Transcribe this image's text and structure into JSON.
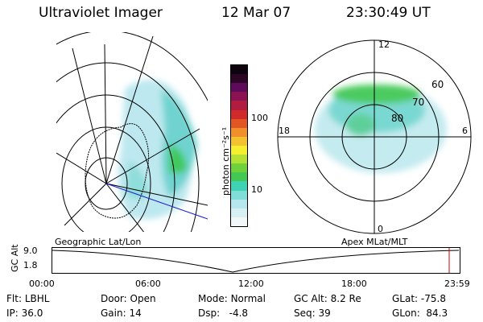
{
  "header": {
    "title": "Ultraviolet Imager",
    "date": "12 Mar 07",
    "time": "23:30:49 UT"
  },
  "colorbar": {
    "unit_label": "photon cm⁻²s⁻¹",
    "ticks": [
      "100",
      "10"
    ],
    "scale": "log",
    "colors": [
      "#f2f7f7",
      "#d8f0f4",
      "#b4e8ee",
      "#7fded8",
      "#3fd2b4",
      "#42c853",
      "#6fd23a",
      "#b4e234",
      "#f5ef30",
      "#f4c22e",
      "#f0902a",
      "#e25626",
      "#d02a2a",
      "#b01d40",
      "#8b1353",
      "#5d0b5a",
      "#2c0624",
      "#0e0410"
    ]
  },
  "left_map": {
    "caption": "Geographic Lat/Lon"
  },
  "right_map": {
    "caption": "Apex MLat/MLT",
    "lat_labels": [
      "80",
      "70",
      "60"
    ],
    "mlt_labels": [
      "12",
      "18",
      "6",
      "0"
    ]
  },
  "timeline": {
    "ylabel": "GC Alt",
    "yticks": [
      "9.0",
      "1.8"
    ],
    "xticks": [
      "00:00",
      "06:00",
      "12:00",
      "18:00",
      "23:59"
    ],
    "marker_time": "23:30",
    "marker_color": "#cc0000"
  },
  "info": {
    "row1": [
      {
        "label": "Flt:",
        "value": "LBHL"
      },
      {
        "label": "Door:",
        "value": "Open"
      },
      {
        "label": "Mode:",
        "value": "Normal"
      },
      {
        "label": "GC Alt:",
        "value": "8.2 Re"
      },
      {
        "label": "GLat:",
        "value": "-75.8"
      }
    ],
    "row2": [
      {
        "label": "IP:",
        "value": "36.0"
      },
      {
        "label": "Gain:",
        "value": "14"
      },
      {
        "label": "Dsp:",
        "value": "-4.8"
      },
      {
        "label": "Seq:",
        "value": "39"
      },
      {
        "label": "GLon:",
        "value": "84.3"
      }
    ]
  }
}
